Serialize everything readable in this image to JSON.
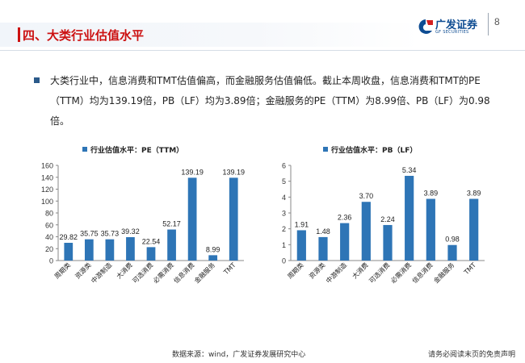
{
  "header": {
    "title": "四、大类行业估值水平",
    "page_number": "8"
  },
  "logo": {
    "name_cn": "广发证券",
    "name_en": "GF SECURITIES"
  },
  "colors": {
    "accent_red": "#cc1111",
    "bar_blue": "#2e75b6",
    "brand_blue": "#0e4c92"
  },
  "paragraph": "大类行业中，信息消费和TMT估值偏高，而金融服务估值偏低。截止本周收盘，信息消费和TMT的PE（TTM）均为139.19倍，PB（LF）均为3.89倍；金融服务的PE（TTM）为8.99倍、PB（LF）为0.98倍。",
  "footer": {
    "source": "数据来源：wind，广发证券发展研究中心",
    "disclaimer": "请务必阅读末页的免责声明"
  },
  "chart_data": [
    {
      "type": "bar",
      "title": "行业估值水平：PE（TTM）",
      "categories": [
        "周期类",
        "资源类",
        "中游制造",
        "大消费",
        "可选消费",
        "必需消费",
        "信息消费",
        "金融服务",
        "TMT"
      ],
      "values": [
        29.82,
        35.75,
        35.73,
        39.32,
        22.54,
        52.17,
        139.19,
        8.99,
        139.19
      ],
      "ylim": [
        0,
        160
      ],
      "yticks": [
        0,
        20,
        40,
        60,
        80,
        100,
        120,
        140,
        160
      ],
      "legend": "top-left"
    },
    {
      "type": "bar",
      "title": "行业估值水平：PB（LF）",
      "categories": [
        "周期类",
        "资源类",
        "中游制造",
        "大消费",
        "可选消费",
        "必需消费",
        "信息消费",
        "金融服务",
        "TMT"
      ],
      "values": [
        1.91,
        1.48,
        2.36,
        3.7,
        2.24,
        5.34,
        3.89,
        0.98,
        3.89
      ],
      "ylim": [
        0,
        6
      ],
      "yticks": [
        0,
        1,
        2,
        3,
        4,
        5,
        6
      ],
      "legend": "top-left"
    }
  ]
}
